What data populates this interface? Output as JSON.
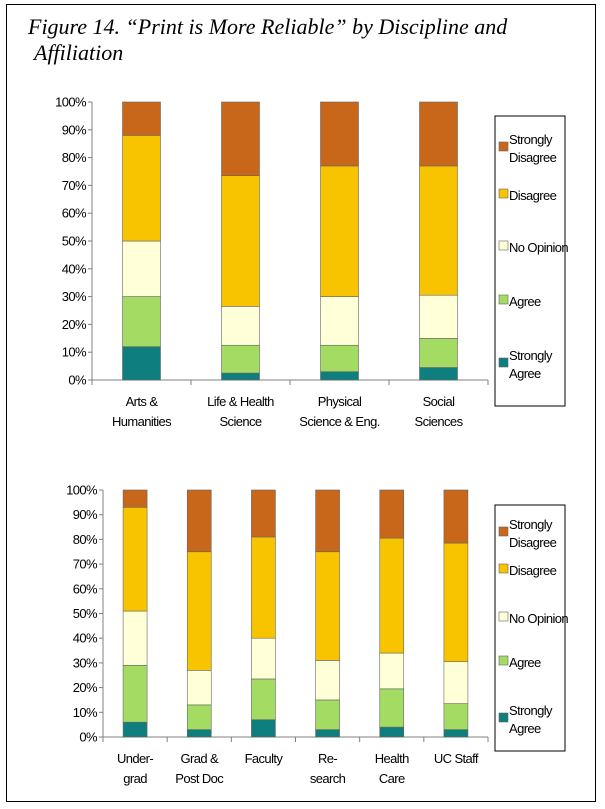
{
  "figure": {
    "title_line1": "Figure 14. “Print is More Reliable” by Discipline and",
    "title_line2": "Affiliation"
  },
  "colors": {
    "strongly_disagree": "#C8661A",
    "disagree": "#F8C400",
    "no_opinion": "#FFFFD8",
    "agree": "#A4DB63",
    "strongly_agree": "#0E7E7E"
  },
  "chart_data": [
    {
      "type": "bar",
      "stacked": true,
      "percent": true,
      "title": "",
      "xlabel": "",
      "ylabel": "",
      "ylim": [
        0,
        100
      ],
      "yticks": [
        "0%",
        "10%",
        "20%",
        "30%",
        "40%",
        "50%",
        "60%",
        "70%",
        "80%",
        "90%",
        "100%"
      ],
      "grid": false,
      "legend_position": "right",
      "categories": [
        [
          "Arts &",
          "Humanities"
        ],
        [
          "Life & Health",
          "Science"
        ],
        [
          "Physical",
          "Science & Eng."
        ],
        [
          "Social",
          "Sciences"
        ]
      ],
      "legend": [
        [
          "Strongly",
          "Disagree"
        ],
        [
          "Disagree"
        ],
        [
          "No Opinion"
        ],
        [
          "Agree"
        ],
        [
          "Strongly",
          "Agree"
        ]
      ],
      "series": [
        {
          "name": "Strongly Agree",
          "values": [
            12,
            2.5,
            3,
            4.5
          ]
        },
        {
          "name": "Agree",
          "values": [
            18,
            10,
            9.5,
            10.5
          ]
        },
        {
          "name": "No Opinion",
          "values": [
            20,
            14,
            17.5,
            15.5
          ]
        },
        {
          "name": "Disagree",
          "values": [
            38,
            47,
            47,
            46.5
          ]
        },
        {
          "name": "Strongly Disagree",
          "values": [
            12,
            26.5,
            23,
            23
          ]
        }
      ]
    },
    {
      "type": "bar",
      "stacked": true,
      "percent": true,
      "title": "",
      "xlabel": "",
      "ylabel": "",
      "ylim": [
        0,
        100
      ],
      "yticks": [
        "0%",
        "10%",
        "20%",
        "30%",
        "40%",
        "50%",
        "60%",
        "70%",
        "80%",
        "90%",
        "100%"
      ],
      "grid": false,
      "legend_position": "right",
      "categories": [
        [
          "Under-",
          "grad"
        ],
        [
          "Grad &",
          "Post Doc"
        ],
        [
          "Faculty"
        ],
        [
          "Re-",
          "search"
        ],
        [
          "Health",
          "Care"
        ],
        [
          "UC Staff"
        ]
      ],
      "legend": [
        [
          "Strongly",
          "Disagree"
        ],
        [
          "Disagree"
        ],
        [
          "No Opinion"
        ],
        [
          "Agree"
        ],
        [
          "Strongly",
          "Agree"
        ]
      ],
      "series": [
        {
          "name": "Strongly Agree",
          "values": [
            6,
            3,
            7,
            3,
            4,
            3
          ]
        },
        {
          "name": "Agree",
          "values": [
            23,
            10,
            16.5,
            12,
            15.5,
            10.5
          ]
        },
        {
          "name": "No Opinion",
          "values": [
            22,
            14,
            16.5,
            16,
            14.5,
            17
          ]
        },
        {
          "name": "Disagree",
          "values": [
            42,
            48,
            41,
            44,
            46.5,
            48
          ]
        },
        {
          "name": "Strongly Disagree",
          "values": [
            7,
            25,
            19,
            25,
            19.5,
            21.5
          ]
        }
      ]
    }
  ]
}
